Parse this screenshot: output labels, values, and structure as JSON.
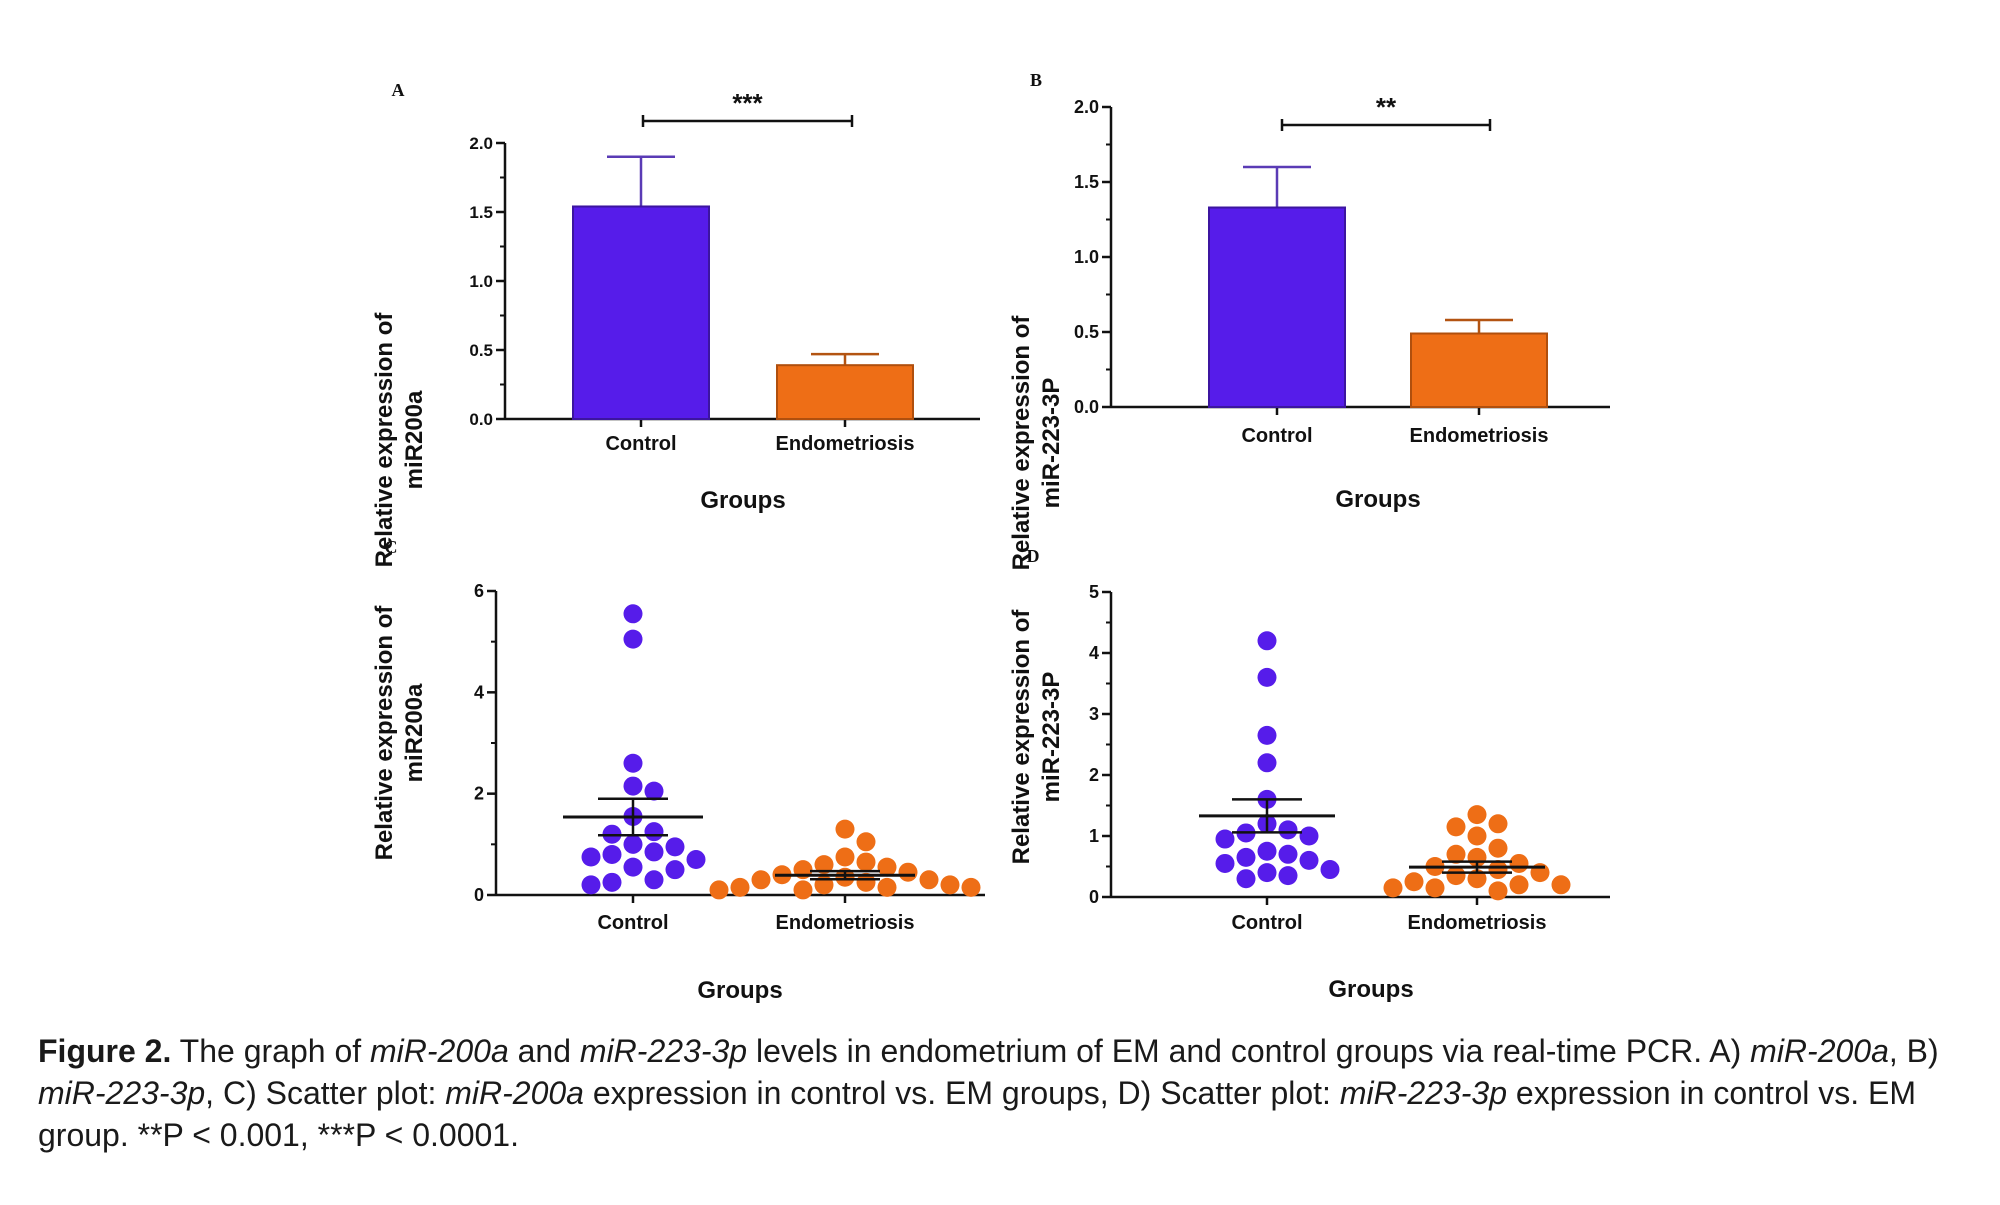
{
  "colors": {
    "control": "#561cea",
    "endometriosis": "#ee6e16",
    "axis": "#111111"
  },
  "chart_data": [
    {
      "panel": "A",
      "type": "bar",
      "categories": [
        "Control",
        "Endometriosis"
      ],
      "values": [
        1.54,
        0.39
      ],
      "error": [
        0.36,
        0.08
      ],
      "ylabel_lines": [
        "Relative expression of",
        "miR200a"
      ],
      "xlabel": "Groups",
      "ylim": [
        0,
        2.0
      ],
      "yticks": [
        "0.0",
        "0.5",
        "1.0",
        "1.5",
        "2.0"
      ],
      "significance": "***"
    },
    {
      "panel": "B",
      "type": "bar",
      "categories": [
        "Control",
        "Endometriosis"
      ],
      "values": [
        1.33,
        0.49
      ],
      "error": [
        0.27,
        0.09
      ],
      "ylabel_lines": [
        "Relative expression of",
        "miR-223-3P"
      ],
      "xlabel": "Groups",
      "ylim": [
        0,
        2.0
      ],
      "yticks": [
        "0.0",
        "0.5",
        "1.0",
        "1.5",
        "2.0"
      ],
      "significance": "**"
    },
    {
      "panel": "C",
      "type": "scatter",
      "categories": [
        "Control",
        "Endometriosis"
      ],
      "series": [
        {
          "group": "Control",
          "mean": 1.54,
          "sem": 0.36,
          "values": [
            5.55,
            5.05,
            2.6,
            2.15,
            2.05,
            1.55,
            1.25,
            1.2,
            1.0,
            0.95,
            0.85,
            0.8,
            0.75,
            0.7,
            0.55,
            0.5,
            0.3,
            0.25,
            0.2
          ]
        },
        {
          "group": "Endometriosis",
          "mean": 0.39,
          "sem": 0.08,
          "values": [
            1.3,
            1.05,
            0.75,
            0.65,
            0.6,
            0.55,
            0.5,
            0.45,
            0.4,
            0.35,
            0.3,
            0.3,
            0.25,
            0.2,
            0.2,
            0.15,
            0.15,
            0.15,
            0.1,
            0.1
          ]
        }
      ],
      "ylabel_lines": [
        "Relative expression of",
        "miR200a"
      ],
      "xlabel": "Groups",
      "ylim": [
        0,
        6
      ],
      "yticks": [
        "0",
        "2",
        "4",
        "6"
      ]
    },
    {
      "panel": "D",
      "type": "scatter",
      "categories": [
        "Control",
        "Endometriosis"
      ],
      "series": [
        {
          "group": "Control",
          "mean": 1.33,
          "sem": 0.27,
          "values": [
            4.2,
            3.6,
            2.65,
            2.2,
            1.6,
            1.2,
            1.1,
            1.05,
            1.0,
            0.95,
            0.75,
            0.7,
            0.65,
            0.6,
            0.55,
            0.45,
            0.4,
            0.35,
            0.3
          ]
        },
        {
          "group": "Endometriosis",
          "mean": 0.49,
          "sem": 0.09,
          "values": [
            1.35,
            1.2,
            1.15,
            1.0,
            0.8,
            0.7,
            0.65,
            0.55,
            0.5,
            0.45,
            0.4,
            0.35,
            0.3,
            0.25,
            0.2,
            0.2,
            0.15,
            0.15,
            0.1
          ]
        }
      ],
      "ylabel_lines": [
        "Relative expression of",
        "miR-223-3P"
      ],
      "xlabel": "Groups",
      "ylim": [
        0,
        5
      ],
      "yticks": [
        "0",
        "1",
        "2",
        "3",
        "4",
        "5"
      ]
    }
  ],
  "caption": {
    "label": "Figure 2.",
    "t1": " The graph of ",
    "i1": "miR-200a",
    "t2": " and ",
    "i2": "miR-223-3p",
    "t3": " levels in endometrium of EM and control groups via real-time PCR. A) ",
    "i3": "miR-200a",
    "t4": ", B) ",
    "i4": "miR-223-3p",
    "t5": ", C) Scatter plot: ",
    "i5": "miR-200a",
    "t6": " expression in control vs. EM groups, D) Scatter plot: ",
    "i6": "miR-223-3p",
    "t7": " expression in control vs. EM group. **P < 0.001, ***P < 0.0001."
  }
}
